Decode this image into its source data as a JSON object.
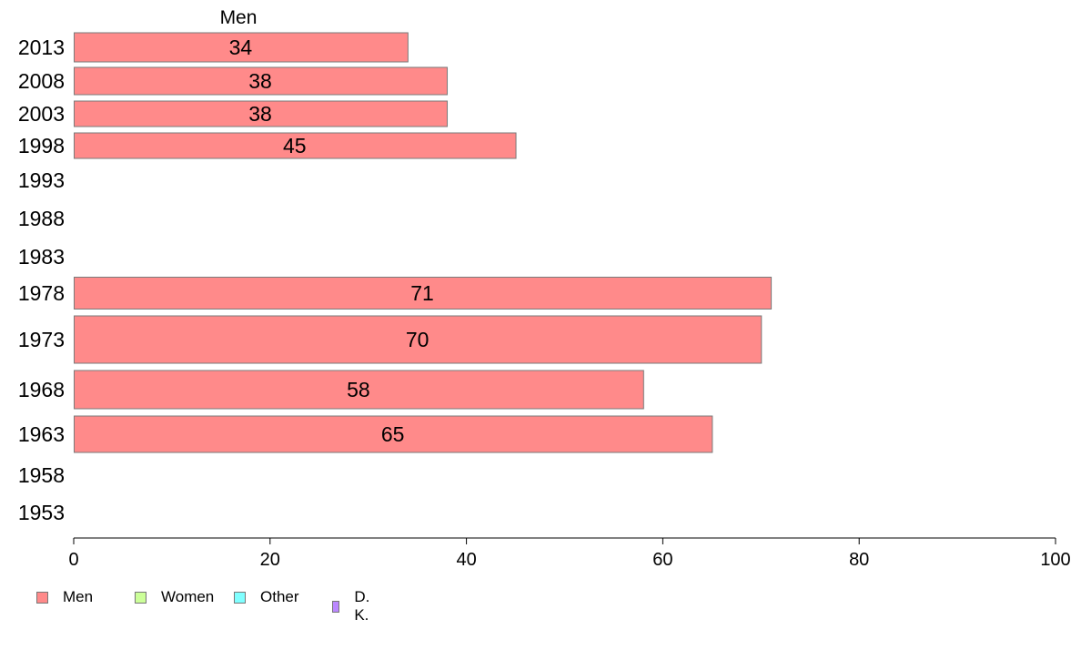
{
  "chart_data": {
    "type": "bar",
    "orientation": "horizontal",
    "title": "Men",
    "categories": [
      "2013",
      "2008",
      "2003",
      "1998",
      "1993",
      "1988",
      "1983",
      "1978",
      "1973",
      "1968",
      "1963",
      "1958",
      "1953"
    ],
    "series": [
      {
        "name": "Men",
        "color": "#ff8a8a",
        "values": [
          34,
          38,
          38,
          45,
          null,
          null,
          null,
          71,
          70,
          58,
          65,
          null,
          null
        ],
        "labels": [
          "34",
          "38",
          "38",
          "45",
          "",
          "",
          "",
          "71",
          "70",
          "58",
          "65",
          "",
          ""
        ]
      }
    ],
    "xlim": [
      0,
      100
    ],
    "xticks": [
      "0",
      "20",
      "40",
      "60",
      "80",
      "100"
    ],
    "xlabel": "",
    "ylabel": "",
    "grid": false,
    "legend": {
      "position": "bottom-left",
      "entries": [
        {
          "label": "Men",
          "color": "#ff8a8a"
        },
        {
          "label": "Women",
          "color": "#ccff99"
        },
        {
          "label": "Other",
          "color": "#80ffff"
        },
        {
          "label": "D. K.",
          "color": "#bb88ff"
        }
      ]
    }
  }
}
